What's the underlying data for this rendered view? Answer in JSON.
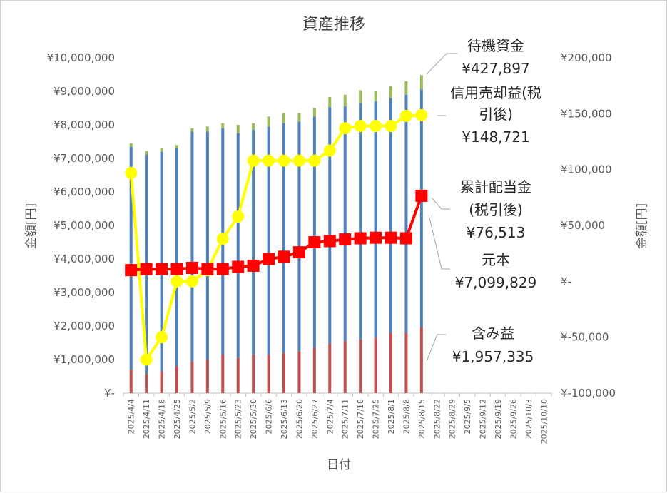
{
  "chart_data": {
    "type": "bar",
    "title": "資産推移",
    "xlabel": "日付",
    "ylabel_left": "金額[円]",
    "ylabel_right": "金額[円]",
    "categories": [
      "2025/4/4",
      "2025/4/11",
      "2025/4/18",
      "2025/4/25",
      "2025/5/2",
      "2025/5/9",
      "2025/5/16",
      "2025/5/23",
      "2025/5/30",
      "2025/6/6",
      "2025/6/13",
      "2025/6/20",
      "2025/6/27",
      "2025/7/4",
      "2025/7/11",
      "2025/7/18",
      "2025/7/25",
      "2025/8/1",
      "2025/8/8",
      "2025/8/15",
      "2025/8/22",
      "2025/8/29",
      "2025/9/5",
      "2025/9/12",
      "2025/9/19",
      "2025/9/26",
      "2025/10/3",
      "2025/10/10"
    ],
    "ylim_left": [
      0,
      10000000
    ],
    "ylim_right": [
      -100000,
      200000
    ],
    "left_ticks": [
      "¥-",
      "¥1,000,000",
      "¥2,000,000",
      "¥3,000,000",
      "¥4,000,000",
      "¥5,000,000",
      "¥6,000,000",
      "¥7,000,000",
      "¥8,000,000",
      "¥9,000,000",
      "¥10,000,000"
    ],
    "right_ticks": [
      "¥-100,000",
      "¥-50,000",
      "¥-",
      "¥50,000",
      "¥100,000",
      "¥150,000",
      "¥200,000"
    ],
    "grid": false,
    "stacked_bars": [
      {
        "name": "含み益",
        "axis": "left",
        "color": "#c0504d",
        "values": [
          700000,
          570000,
          650000,
          800000,
          950000,
          1000000,
          1150000,
          1050000,
          1150000,
          1150000,
          1200000,
          1250000,
          1350000,
          1480000,
          1550000,
          1600000,
          1650000,
          1800000,
          1800000,
          1957335
        ]
      },
      {
        "name": "元本",
        "axis": "left",
        "color": "#4f81bd",
        "values": [
          6650000,
          6550000,
          6550000,
          6500000,
          6850000,
          6800000,
          6750000,
          6700000,
          6700000,
          6800000,
          6850000,
          6850000,
          6900000,
          7050000,
          7000000,
          7050000,
          7050000,
          7000000,
          7100000,
          7099829
        ]
      },
      {
        "name": "待機資金",
        "axis": "left",
        "color": "#9bbb59",
        "values": [
          100000,
          100000,
          100000,
          100000,
          100000,
          150000,
          150000,
          250000,
          200000,
          300000,
          300000,
          250000,
          250000,
          300000,
          350000,
          380000,
          300000,
          350000,
          400000,
          427897
        ]
      }
    ],
    "lines": [
      {
        "name": "信用売却益(税引後)",
        "axis": "right",
        "color": "#ffff00",
        "marker": "circle",
        "values": [
          97000,
          -70000,
          -50000,
          0,
          0,
          10000,
          38000,
          58000,
          108000,
          108000,
          108000,
          108000,
          108000,
          117000,
          137000,
          139000,
          139000,
          139000,
          148000,
          148721
        ]
      },
      {
        "name": "累計配当金(税引後)",
        "axis": "right",
        "color": "#ff0000",
        "marker": "square",
        "values": [
          10000,
          11000,
          11000,
          11000,
          12000,
          11000,
          11000,
          13000,
          14000,
          20000,
          22000,
          26000,
          35000,
          36000,
          37500,
          38500,
          39000,
          39000,
          38500,
          76513
        ]
      }
    ],
    "annotations": [
      {
        "name": "待機資金",
        "value": "¥427,897"
      },
      {
        "name": "信用売却益(税引後)",
        "value": "¥148,721"
      },
      {
        "name": "累計配当金(税引後)",
        "value": "¥76,513"
      },
      {
        "name": "元本",
        "value": "¥7,099,829"
      },
      {
        "name": "含み益",
        "value": "¥1,957,335"
      }
    ]
  },
  "labels": {
    "ann1_title": "待機資金",
    "ann1_value": "¥427,897",
    "ann2_line1": "信用売却益(税",
    "ann2_line2": "引後)",
    "ann2_value": "¥148,721",
    "ann3_line1": "累計配当金",
    "ann3_line2": "(税引後)",
    "ann3_value": "¥76,513",
    "ann4_title": "元本",
    "ann4_value": "¥7,099,829",
    "ann5_title": "含み益",
    "ann5_value": "¥1,957,335"
  }
}
